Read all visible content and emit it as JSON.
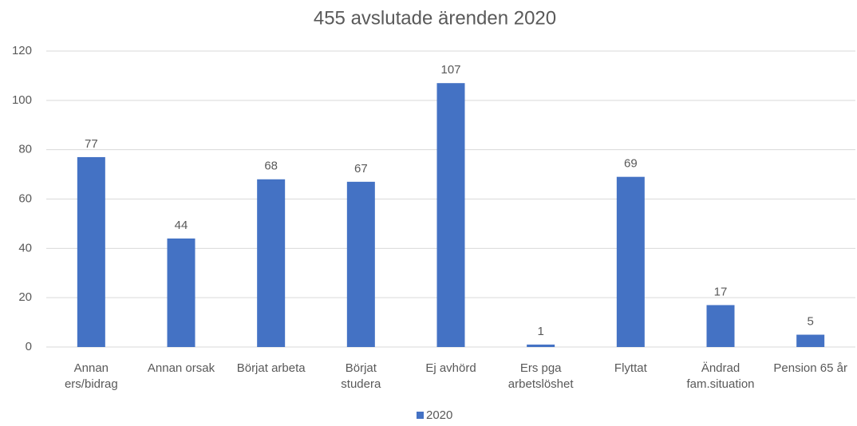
{
  "chart_data": {
    "type": "bar",
    "title": "455 avslutade ärenden 2020",
    "categories": [
      [
        "Annan",
        "ers/bidrag"
      ],
      [
        "Annan orsak"
      ],
      [
        "Börjat arbeta"
      ],
      [
        "Börjat",
        "studera"
      ],
      [
        "Ej avhörd"
      ],
      [
        "Ers pga",
        "arbetslöshet"
      ],
      [
        "Flyttat"
      ],
      [
        "Ändrad",
        "fam.situation"
      ],
      [
        "Pension 65 år"
      ]
    ],
    "series": [
      {
        "name": "2020",
        "color": "#4472c4",
        "values": [
          77,
          44,
          68,
          67,
          107,
          1,
          69,
          17,
          5
        ]
      }
    ],
    "ylim": [
      0,
      120
    ],
    "yticks": [
      0,
      20,
      40,
      60,
      80,
      100,
      120
    ],
    "grid": true,
    "legend": "bottom"
  }
}
